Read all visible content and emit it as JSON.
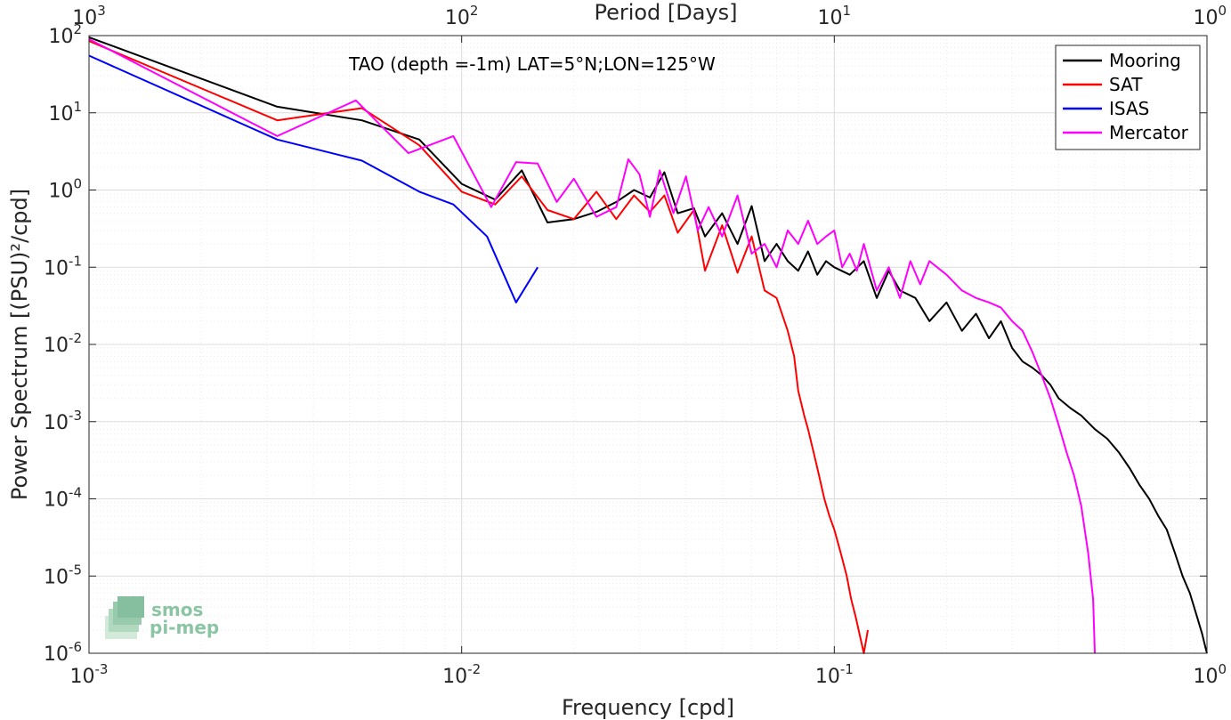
{
  "chart_data": {
    "type": "line",
    "title": "TAO (depth =-1m) LAT=5°N;LON=125°W",
    "xlabel": "Frequency [cpd]",
    "ylabel": "Power Spectrum [(PSU)²/cpd]",
    "x2label": "Period [Days]",
    "xscale": "log",
    "yscale": "log",
    "xlim": [
      0.001,
      1
    ],
    "ylim": [
      1e-06,
      100
    ],
    "grid": true,
    "legend_position": "top-right",
    "x_ticks": [
      {
        "base": "10",
        "exp": "-3"
      },
      {
        "base": "10",
        "exp": "-2"
      },
      {
        "base": "10",
        "exp": "-1"
      },
      {
        "base": "10",
        "exp": "0"
      }
    ],
    "x2_ticks": [
      {
        "base": "10",
        "exp": "3"
      },
      {
        "base": "10",
        "exp": "2"
      },
      {
        "base": "10",
        "exp": "1"
      },
      {
        "base": "10",
        "exp": "0"
      }
    ],
    "y_ticks": [
      {
        "base": "10",
        "exp": "-6"
      },
      {
        "base": "10",
        "exp": "-5"
      },
      {
        "base": "10",
        "exp": "-4"
      },
      {
        "base": "10",
        "exp": "-3"
      },
      {
        "base": "10",
        "exp": "-2"
      },
      {
        "base": "10",
        "exp": "-1"
      },
      {
        "base": "10",
        "exp": "0"
      },
      {
        "base": "10",
        "exp": "1"
      },
      {
        "base": "10",
        "exp": "2"
      }
    ],
    "series": [
      {
        "name": "Mooring",
        "color": "#000000",
        "x": [
          0.001,
          0.0032,
          0.0054,
          0.0077,
          0.01,
          0.0123,
          0.0145,
          0.017,
          0.02,
          0.023,
          0.026,
          0.029,
          0.032,
          0.035,
          0.038,
          0.042,
          0.045,
          0.05,
          0.055,
          0.06,
          0.065,
          0.07,
          0.075,
          0.08,
          0.085,
          0.09,
          0.095,
          0.1,
          0.11,
          0.12,
          0.13,
          0.14,
          0.15,
          0.165,
          0.18,
          0.2,
          0.22,
          0.24,
          0.26,
          0.28,
          0.3,
          0.32,
          0.34,
          0.36,
          0.38,
          0.4,
          0.43,
          0.46,
          0.5,
          0.54,
          0.58,
          0.62,
          0.66,
          0.7,
          0.74,
          0.78,
          0.82,
          0.86,
          0.9,
          0.94,
          0.97,
          0.99,
          1.0
        ],
        "y": [
          95,
          12,
          8,
          4.5,
          1.2,
          0.75,
          1.8,
          0.38,
          0.42,
          0.52,
          0.7,
          1.0,
          0.8,
          1.7,
          0.5,
          0.58,
          0.25,
          0.5,
          0.2,
          0.62,
          0.12,
          0.2,
          0.12,
          0.09,
          0.16,
          0.08,
          0.12,
          0.1,
          0.08,
          0.12,
          0.04,
          0.09,
          0.05,
          0.04,
          0.02,
          0.035,
          0.015,
          0.025,
          0.012,
          0.02,
          0.009,
          0.006,
          0.005,
          0.004,
          0.003,
          0.002,
          0.0015,
          0.0012,
          0.0008,
          0.0006,
          0.0004,
          0.00025,
          0.00015,
          0.0001,
          6e-05,
          4e-05,
          2e-05,
          1e-05,
          6e-06,
          3e-06,
          1.8e-06,
          1.2e-06,
          1e-06
        ]
      },
      {
        "name": "SAT",
        "color": "#ff0000",
        "x": [
          0.001,
          0.0032,
          0.0054,
          0.0077,
          0.01,
          0.0123,
          0.0145,
          0.017,
          0.02,
          0.023,
          0.026,
          0.029,
          0.032,
          0.035,
          0.038,
          0.042,
          0.045,
          0.05,
          0.055,
          0.06,
          0.065,
          0.07,
          0.075,
          0.078,
          0.08,
          0.083,
          0.085,
          0.088,
          0.091,
          0.094,
          0.097,
          0.1,
          0.104,
          0.108,
          0.111,
          0.114,
          0.12,
          0.123
        ],
        "y": [
          85,
          8,
          11.5,
          3.8,
          0.95,
          0.65,
          1.5,
          0.55,
          0.42,
          0.95,
          0.42,
          0.85,
          0.52,
          0.85,
          0.28,
          0.55,
          0.09,
          0.35,
          0.085,
          0.25,
          0.05,
          0.04,
          0.015,
          0.007,
          0.0025,
          0.0012,
          0.0008,
          0.0004,
          0.0002,
          0.0001,
          6e-05,
          4e-05,
          2e-05,
          1e-05,
          5e-06,
          3e-06,
          1e-06,
          2e-06
        ]
      },
      {
        "name": "ISAS",
        "color": "#0000ff",
        "x": [
          0.001,
          0.0032,
          0.0054,
          0.0077,
          0.0095,
          0.0117,
          0.014,
          0.016
        ],
        "y": [
          55,
          4.5,
          2.4,
          0.95,
          0.65,
          0.25,
          0.035,
          0.1
        ]
      },
      {
        "name": "Mercator",
        "color": "#ff00ff",
        "x": [
          0.001,
          0.0032,
          0.0052,
          0.0072,
          0.0095,
          0.012,
          0.014,
          0.016,
          0.018,
          0.02,
          0.023,
          0.026,
          0.028,
          0.03,
          0.032,
          0.034,
          0.037,
          0.04,
          0.043,
          0.046,
          0.05,
          0.055,
          0.06,
          0.065,
          0.07,
          0.075,
          0.08,
          0.085,
          0.09,
          0.095,
          0.1,
          0.105,
          0.11,
          0.115,
          0.12,
          0.13,
          0.14,
          0.15,
          0.16,
          0.17,
          0.18,
          0.2,
          0.22,
          0.24,
          0.26,
          0.28,
          0.3,
          0.32,
          0.34,
          0.36,
          0.38,
          0.4,
          0.42,
          0.44,
          0.46,
          0.48,
          0.495,
          0.5
        ],
        "y": [
          90,
          5,
          14.5,
          3,
          5,
          0.6,
          2.3,
          2.2,
          0.7,
          1.4,
          0.45,
          0.6,
          2.5,
          1.6,
          0.45,
          1.8,
          0.5,
          1.5,
          0.3,
          0.6,
          0.25,
          0.85,
          0.15,
          0.2,
          0.1,
          0.3,
          0.2,
          0.4,
          0.2,
          0.25,
          0.3,
          0.1,
          0.15,
          0.09,
          0.2,
          0.05,
          0.1,
          0.04,
          0.12,
          0.06,
          0.12,
          0.08,
          0.05,
          0.04,
          0.035,
          0.03,
          0.02,
          0.015,
          0.008,
          0.004,
          0.002,
          0.0009,
          0.0004,
          0.0002,
          8e-05,
          2e-05,
          5e-06,
          1e-06
        ]
      }
    ]
  },
  "logo": {
    "line1": "smos",
    "line2": "pi-mep"
  }
}
